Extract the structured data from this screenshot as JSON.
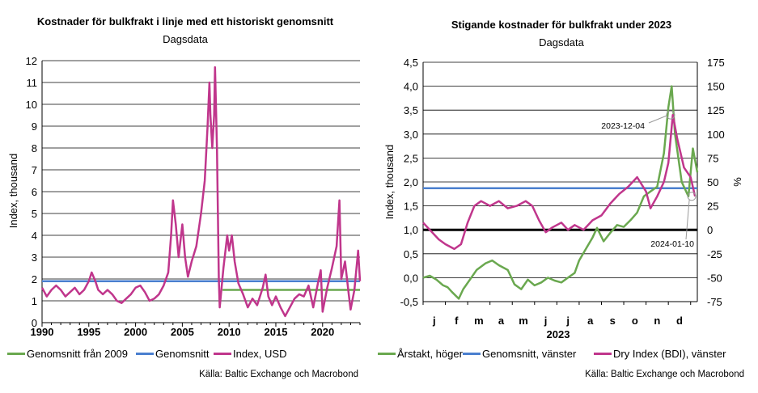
{
  "left_chart": {
    "title": "Kostnader för bulkfrakt i linje med ett historiskt genomsnitt",
    "subtitle": "Dagsdata",
    "ylabel": "Index, thousand",
    "legend": [
      "Genomsnitt från 2009",
      "Genomsnitt",
      "Index, USD"
    ],
    "source": "Källa: Baltic Exchange och Macrobond"
  },
  "right_chart": {
    "title": "Stigande kostnader för bulkfrakt under 2023",
    "subtitle": "Dagsdata",
    "ylabel_left": "Index, thousand",
    "ylabel_right": "%",
    "year_label": "2023",
    "annotations": [
      "2023-12-04",
      "2024-01-10"
    ],
    "legend": [
      "Årstakt, höger",
      "Genomsnitt, vänster",
      "Dry Index (BDI), vänster"
    ],
    "source": "Källa: Baltic Exchange och Macrobond"
  },
  "colors": {
    "green": "#6aa84f",
    "blue": "#4a7fcf",
    "magenta": "#c0368c",
    "black": "#000000",
    "grid": "#000000"
  },
  "chart_data": [
    {
      "type": "line",
      "title": "Kostnader för bulkfrakt i linje med ett historiskt genomsnitt",
      "subtitle": "Dagsdata",
      "ylabel": "Index, thousand",
      "xlim": [
        1990,
        2024
      ],
      "ylim": [
        0,
        12
      ],
      "xticks": [
        "1990",
        "1995",
        "2000",
        "2005",
        "2010",
        "2015",
        "2020"
      ],
      "yticks": [
        "0",
        "1",
        "2",
        "3",
        "4",
        "5",
        "6",
        "7",
        "8",
        "9",
        "10",
        "11",
        "12"
      ],
      "grid": true,
      "legend_position": "bottom",
      "series": [
        {
          "name": "Index, USD",
          "color": "#c0368c",
          "points": [
            [
              1990.0,
              1.6
            ],
            [
              1990.5,
              1.2
            ],
            [
              1991.0,
              1.5
            ],
            [
              1991.5,
              1.7
            ],
            [
              1992.0,
              1.5
            ],
            [
              1992.5,
              1.2
            ],
            [
              1993.0,
              1.4
            ],
            [
              1993.5,
              1.6
            ],
            [
              1994.0,
              1.3
            ],
            [
              1994.5,
              1.5
            ],
            [
              1995.0,
              1.9
            ],
            [
              1995.3,
              2.3
            ],
            [
              1995.7,
              1.9
            ],
            [
              1996.0,
              1.5
            ],
            [
              1996.5,
              1.3
            ],
            [
              1997.0,
              1.5
            ],
            [
              1997.5,
              1.3
            ],
            [
              1998.0,
              1.0
            ],
            [
              1998.5,
              0.9
            ],
            [
              1999.0,
              1.1
            ],
            [
              1999.5,
              1.3
            ],
            [
              2000.0,
              1.6
            ],
            [
              2000.5,
              1.7
            ],
            [
              2001.0,
              1.4
            ],
            [
              2001.5,
              1.0
            ],
            [
              2002.0,
              1.1
            ],
            [
              2002.5,
              1.3
            ],
            [
              2003.0,
              1.7
            ],
            [
              2003.5,
              2.3
            ],
            [
              2003.8,
              4.0
            ],
            [
              2004.0,
              5.6
            ],
            [
              2004.3,
              4.5
            ],
            [
              2004.6,
              3.0
            ],
            [
              2005.0,
              4.5
            ],
            [
              2005.3,
              3.0
            ],
            [
              2005.6,
              2.1
            ],
            [
              2006.0,
              2.8
            ],
            [
              2006.5,
              3.5
            ],
            [
              2007.0,
              5.0
            ],
            [
              2007.4,
              6.5
            ],
            [
              2007.7,
              9.0
            ],
            [
              2007.9,
              11.0
            ],
            [
              2008.0,
              9.5
            ],
            [
              2008.2,
              8.0
            ],
            [
              2008.4,
              9.5
            ],
            [
              2008.5,
              11.7
            ],
            [
              2008.7,
              8.0
            ],
            [
              2008.9,
              2.0
            ],
            [
              2009.0,
              0.7
            ],
            [
              2009.4,
              2.5
            ],
            [
              2009.8,
              4.0
            ],
            [
              2010.0,
              3.3
            ],
            [
              2010.3,
              4.0
            ],
            [
              2010.6,
              2.8
            ],
            [
              2011.0,
              1.8
            ],
            [
              2011.5,
              1.3
            ],
            [
              2012.0,
              0.7
            ],
            [
              2012.5,
              1.1
            ],
            [
              2013.0,
              0.8
            ],
            [
              2013.6,
              1.6
            ],
            [
              2013.9,
              2.2
            ],
            [
              2014.2,
              1.2
            ],
            [
              2014.6,
              0.8
            ],
            [
              2015.0,
              1.2
            ],
            [
              2015.5,
              0.7
            ],
            [
              2016.0,
              0.3
            ],
            [
              2016.5,
              0.7
            ],
            [
              2017.0,
              1.1
            ],
            [
              2017.5,
              1.3
            ],
            [
              2018.0,
              1.2
            ],
            [
              2018.5,
              1.7
            ],
            [
              2019.0,
              0.7
            ],
            [
              2019.5,
              1.8
            ],
            [
              2019.8,
              2.4
            ],
            [
              2020.0,
              0.5
            ],
            [
              2020.5,
              1.6
            ],
            [
              2021.0,
              2.5
            ],
            [
              2021.5,
              3.5
            ],
            [
              2021.8,
              5.6
            ],
            [
              2022.0,
              2.0
            ],
            [
              2022.4,
              2.8
            ],
            [
              2022.8,
              1.3
            ],
            [
              2023.0,
              0.6
            ],
            [
              2023.4,
              1.5
            ],
            [
              2023.8,
              3.3
            ],
            [
              2024.0,
              1.9
            ]
          ]
        },
        {
          "name": "Genomsnitt",
          "color": "#4a7fcf",
          "points": [
            [
              1990,
              1.9
            ],
            [
              2024,
              1.9
            ]
          ]
        },
        {
          "name": "Genomsnitt från 2009",
          "color": "#6aa84f",
          "points": [
            [
              2009.3,
              1.5
            ],
            [
              2024,
              1.5
            ]
          ]
        }
      ]
    },
    {
      "type": "line",
      "title": "Stigande kostnader för bulkfrakt under 2023",
      "subtitle": "Dagsdata",
      "ylabel": "Index, thousand",
      "ylabel_right": "%",
      "xlim": [
        0,
        12.3
      ],
      "ylim": [
        -0.5,
        4.5
      ],
      "ylim_right": [
        -75,
        175
      ],
      "xticks": [
        "j",
        "f",
        "m",
        "a",
        "m",
        "j",
        "j",
        "a",
        "s",
        "o",
        "n",
        "d"
      ],
      "yticks": [
        "-0,5",
        "0,0",
        "0,5",
        "1,0",
        "1,5",
        "2,0",
        "2,5",
        "3,0",
        "3,5",
        "4,0",
        "4,5"
      ],
      "yticks_right": [
        "-75",
        "-50",
        "-25",
        "0",
        "25",
        "50",
        "75",
        "100",
        "125",
        "150",
        "175"
      ],
      "year": "2023",
      "grid": true,
      "legend_position": "bottom",
      "annotations": [
        {
          "text": "2023-12-04",
          "x": 11.1,
          "y": 3.4
        },
        {
          "text": "2024-01-10",
          "x": 12.05,
          "y": 1.7
        }
      ],
      "series": [
        {
          "name": "Dry Index (BDI), vänster",
          "color": "#c0368c",
          "axis": "left",
          "points": [
            [
              0.0,
              1.15
            ],
            [
              0.3,
              1.0
            ],
            [
              0.7,
              0.8
            ],
            [
              1.0,
              0.7
            ],
            [
              1.4,
              0.6
            ],
            [
              1.7,
              0.7
            ],
            [
              2.0,
              1.15
            ],
            [
              2.3,
              1.5
            ],
            [
              2.6,
              1.6
            ],
            [
              3.0,
              1.5
            ],
            [
              3.4,
              1.6
            ],
            [
              3.8,
              1.45
            ],
            [
              4.2,
              1.5
            ],
            [
              4.6,
              1.6
            ],
            [
              4.9,
              1.5
            ],
            [
              5.2,
              1.2
            ],
            [
              5.5,
              0.95
            ],
            [
              5.8,
              1.05
            ],
            [
              6.2,
              1.15
            ],
            [
              6.5,
              1.0
            ],
            [
              6.8,
              1.1
            ],
            [
              7.2,
              1.0
            ],
            [
              7.6,
              1.2
            ],
            [
              8.0,
              1.3
            ],
            [
              8.4,
              1.55
            ],
            [
              8.8,
              1.75
            ],
            [
              9.2,
              1.9
            ],
            [
              9.6,
              2.1
            ],
            [
              10.0,
              1.8
            ],
            [
              10.2,
              1.45
            ],
            [
              10.5,
              1.7
            ],
            [
              10.8,
              2.0
            ],
            [
              11.0,
              2.4
            ],
            [
              11.2,
              3.4
            ],
            [
              11.4,
              2.9
            ],
            [
              11.7,
              2.3
            ],
            [
              12.0,
              2.1
            ],
            [
              12.2,
              1.7
            ]
          ]
        },
        {
          "name": "Årstakt, höger",
          "color": "#6aa84f",
          "axis": "right",
          "points": [
            [
              0.0,
              -50
            ],
            [
              0.3,
              -48
            ],
            [
              0.6,
              -52
            ],
            [
              0.9,
              -58
            ],
            [
              1.1,
              -60
            ],
            [
              1.3,
              -65
            ],
            [
              1.6,
              -72
            ],
            [
              1.8,
              -62
            ],
            [
              2.1,
              -52
            ],
            [
              2.4,
              -42
            ],
            [
              2.8,
              -35
            ],
            [
              3.1,
              -32
            ],
            [
              3.4,
              -37
            ],
            [
              3.8,
              -42
            ],
            [
              4.1,
              -57
            ],
            [
              4.4,
              -62
            ],
            [
              4.7,
              -52
            ],
            [
              5.0,
              -58
            ],
            [
              5.3,
              -55
            ],
            [
              5.6,
              -50
            ],
            [
              5.9,
              -53
            ],
            [
              6.2,
              -55
            ],
            [
              6.5,
              -50
            ],
            [
              6.8,
              -45
            ],
            [
              7.0,
              -32
            ],
            [
              7.3,
              -20
            ],
            [
              7.6,
              -8
            ],
            [
              7.8,
              2
            ],
            [
              8.1,
              -12
            ],
            [
              8.4,
              -3
            ],
            [
              8.7,
              5
            ],
            [
              9.0,
              3
            ],
            [
              9.3,
              10
            ],
            [
              9.6,
              18
            ],
            [
              9.9,
              35
            ],
            [
              10.2,
              40
            ],
            [
              10.5,
              45
            ],
            [
              10.8,
              80
            ],
            [
              11.0,
              128
            ],
            [
              11.15,
              150
            ],
            [
              11.3,
              100
            ],
            [
              11.6,
              50
            ],
            [
              11.9,
              35
            ],
            [
              12.1,
              85
            ],
            [
              12.3,
              60
            ]
          ]
        },
        {
          "name": "Genomsnitt, vänster",
          "color": "#4a7fcf",
          "axis": "left",
          "points": [
            [
              0,
              1.87
            ],
            [
              12.3,
              1.87
            ]
          ]
        }
      ]
    }
  ]
}
